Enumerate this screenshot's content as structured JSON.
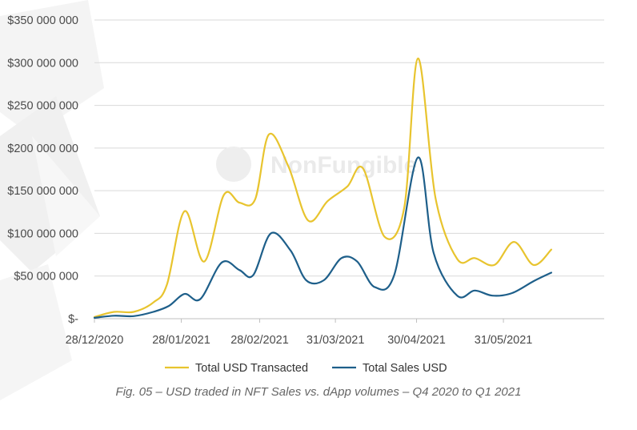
{
  "colors": {
    "transacted": "#e8c42e",
    "sales": "#1e5f8a",
    "grid": "#d9d9d9",
    "axis": "#bfbfbf",
    "watermark": "#eaeaea"
  },
  "watermark": {
    "text": "NonFungible"
  },
  "chart_data": {
    "type": "line",
    "title": "",
    "xlabel": "",
    "ylabel": "",
    "ylim": [
      0,
      350000000
    ],
    "yticks": [
      {
        "value": 0,
        "label": "$-"
      },
      {
        "value": 50000000,
        "label": "$50 000 000"
      },
      {
        "value": 100000000,
        "label": "$100 000 000"
      },
      {
        "value": 150000000,
        "label": "$150 000 000"
      },
      {
        "value": 200000000,
        "label": "$200 000 000"
      },
      {
        "value": 250000000,
        "label": "$250 000 000"
      },
      {
        "value": 300000000,
        "label": "$300 000 000"
      },
      {
        "value": 350000000,
        "label": "$350 000 000"
      }
    ],
    "xlim": [
      0,
      26
    ],
    "xticks": [
      {
        "index": 0,
        "label": "28/12/2020"
      },
      {
        "index": 4.43,
        "label": "28/01/2021"
      },
      {
        "index": 8.43,
        "label": "28/02/2021"
      },
      {
        "index": 12.29,
        "label": "31/03/2021"
      },
      {
        "index": 16.43,
        "label": "30/04/2021"
      },
      {
        "index": 20.86,
        "label": "31/05/2021"
      }
    ],
    "legend_position": "bottom",
    "series": [
      {
        "name": "Total USD Transacted",
        "color_key": "transacted",
        "points": [
          [
            0,
            2000000
          ],
          [
            1,
            8000000
          ],
          [
            2,
            8000000
          ],
          [
            3,
            19000000
          ],
          [
            3.7,
            40000000
          ],
          [
            4.6,
            126000000
          ],
          [
            5.6,
            67000000
          ],
          [
            6.6,
            145000000
          ],
          [
            7.4,
            136000000
          ],
          [
            8.2,
            140000000
          ],
          [
            8.9,
            216000000
          ],
          [
            9.9,
            178000000
          ],
          [
            10.9,
            115000000
          ],
          [
            11.9,
            138000000
          ],
          [
            12.9,
            155000000
          ],
          [
            13.7,
            176000000
          ],
          [
            14.8,
            96000000
          ],
          [
            15.8,
            130000000
          ],
          [
            16.5,
            305000000
          ],
          [
            17.4,
            141000000
          ],
          [
            18.5,
            70000000
          ],
          [
            19.4,
            71000000
          ],
          [
            20.4,
            63000000
          ],
          [
            21.4,
            90000000
          ],
          [
            22.4,
            63000000
          ],
          [
            23.3,
            81000000
          ]
        ]
      },
      {
        "name": "Total Sales USD",
        "color_key": "sales",
        "points": [
          [
            0,
            1000000
          ],
          [
            1,
            3500000
          ],
          [
            2,
            3000000
          ],
          [
            3,
            8000000
          ],
          [
            3.8,
            15000000
          ],
          [
            4.6,
            29000000
          ],
          [
            5.4,
            23000000
          ],
          [
            6.5,
            66000000
          ],
          [
            7.4,
            57000000
          ],
          [
            8.1,
            51000000
          ],
          [
            9.0,
            100000000
          ],
          [
            10.0,
            80000000
          ],
          [
            10.8,
            45000000
          ],
          [
            11.7,
            45000000
          ],
          [
            12.6,
            71000000
          ],
          [
            13.4,
            67000000
          ],
          [
            14.3,
            37000000
          ],
          [
            15.3,
            52000000
          ],
          [
            16.5,
            189000000
          ],
          [
            17.3,
            77000000
          ],
          [
            18.5,
            27000000
          ],
          [
            19.4,
            33000000
          ],
          [
            20.3,
            27000000
          ],
          [
            21.3,
            30000000
          ],
          [
            22.4,
            44000000
          ],
          [
            23.3,
            54000000
          ]
        ]
      }
    ]
  },
  "caption": "Fig. 05 – USD traded in NFT Sales vs. dApp volumes – Q4 2020 to Q1 2021"
}
